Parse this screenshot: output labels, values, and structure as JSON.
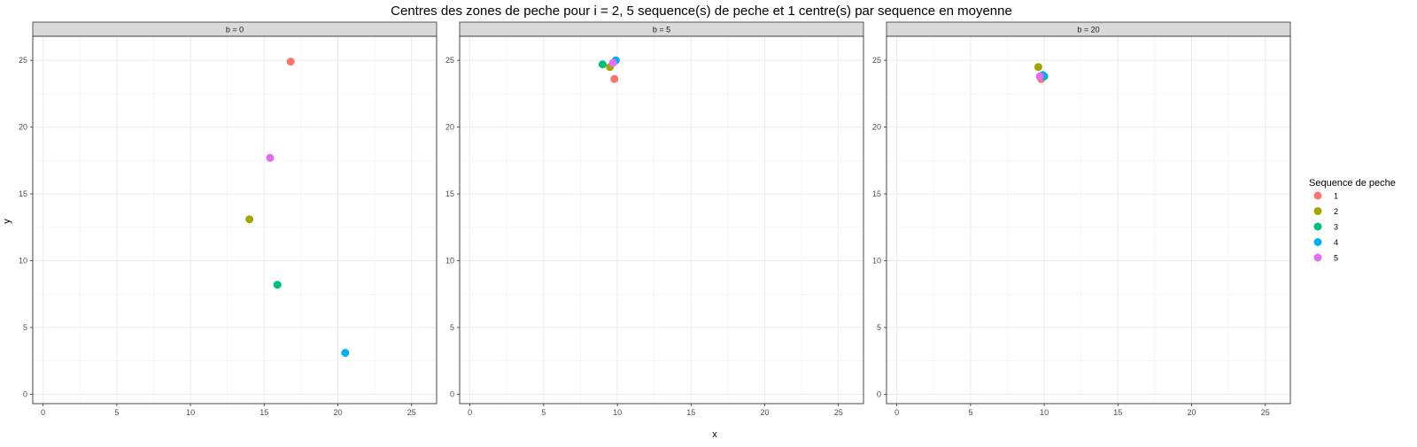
{
  "chart_data": {
    "type": "scatter",
    "title": "Centres des zones de peche pour i = 2, 5 sequence(s) de peche et 1 centre(s) par sequence en moyenne",
    "xlabel": "x",
    "ylabel": "y",
    "xlim": [
      -0.7,
      26.7
    ],
    "ylim": [
      -0.7,
      26.8
    ],
    "xticks": [
      0,
      5,
      10,
      15,
      20,
      25
    ],
    "yticks": [
      0,
      5,
      10,
      15,
      20,
      25
    ],
    "grid": true,
    "legend": {
      "title": "Sequence de peche",
      "placement": "right",
      "items": [
        {
          "label": "1",
          "color": "#F8766D"
        },
        {
          "label": "2",
          "color": "#A3A500"
        },
        {
          "label": "3",
          "color": "#00BF7D"
        },
        {
          "label": "4",
          "color": "#00B0F6"
        },
        {
          "label": "5",
          "color": "#E76BF3"
        }
      ]
    },
    "facets": [
      {
        "label": "b = 0",
        "points": [
          {
            "seq": "1",
            "x": 16.8,
            "y": 24.9
          },
          {
            "seq": "2",
            "x": 14.0,
            "y": 13.1
          },
          {
            "seq": "3",
            "x": 15.9,
            "y": 8.2
          },
          {
            "seq": "4",
            "x": 20.5,
            "y": 3.1
          },
          {
            "seq": "5",
            "x": 15.4,
            "y": 17.7
          }
        ]
      },
      {
        "label": "b = 5",
        "points": [
          {
            "seq": "1",
            "x": 9.8,
            "y": 23.6
          },
          {
            "seq": "2",
            "x": 9.5,
            "y": 24.5
          },
          {
            "seq": "3",
            "x": 9.0,
            "y": 24.7
          },
          {
            "seq": "4",
            "x": 9.9,
            "y": 25.0
          },
          {
            "seq": "5",
            "x": 9.7,
            "y": 24.8
          }
        ]
      },
      {
        "label": "b = 20",
        "points": [
          {
            "seq": "1",
            "x": 9.8,
            "y": 23.6
          },
          {
            "seq": "2",
            "x": 9.6,
            "y": 24.5
          },
          {
            "seq": "3",
            "x": 10.0,
            "y": 23.8
          },
          {
            "seq": "4",
            "x": 9.9,
            "y": 23.9
          },
          {
            "seq": "5",
            "x": 9.7,
            "y": 23.8
          }
        ]
      }
    ]
  }
}
